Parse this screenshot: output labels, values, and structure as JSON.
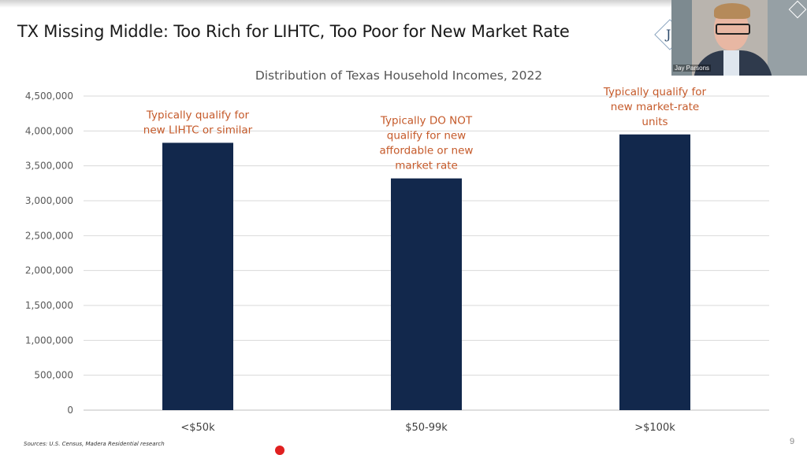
{
  "slide": {
    "title": "TX Missing Middle: Too Rich for LIHTC, Too Poor for New Market Rate",
    "source": "Sources: U.S. Census, Madera Residential research",
    "page_number": "9"
  },
  "webcam": {
    "speaker_name": "Jay Parsons"
  },
  "chart_data": {
    "type": "bar",
    "title": "Distribution of Texas Household Incomes, 2022",
    "categories": [
      "<$50k",
      "$50-99k",
      ">$100k"
    ],
    "values": [
      3830000,
      3320000,
      3950000
    ],
    "ylim": [
      0,
      4500000
    ],
    "yticks": [
      "0",
      "500,000",
      "1,000,000",
      "1,500,000",
      "2,000,000",
      "2,500,000",
      "3,000,000",
      "3,500,000",
      "4,000,000",
      "4,500,000"
    ],
    "grid": true,
    "bar_color": "#12284c",
    "annotation_color": "#c55a2a",
    "annotations": [
      [
        "Typically qualify for",
        "new LIHTC or similar"
      ],
      [
        "Typically DO NOT",
        "qualify for new",
        "affordable or new",
        "market rate"
      ],
      [
        "Typically qualify for",
        "new market-rate",
        "units"
      ]
    ]
  }
}
